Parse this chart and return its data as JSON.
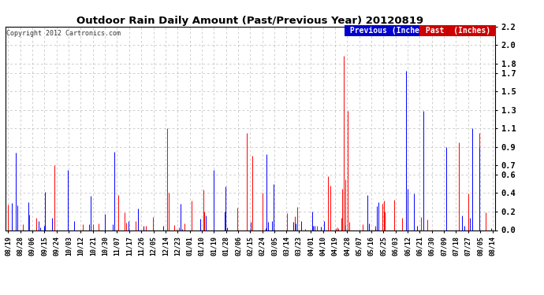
{
  "title": "Outdoor Rain Daily Amount (Past/Previous Year) 20120819",
  "copyright": "Copyright 2012 Cartronics.com",
  "legend_previous": "Previous (Inches)",
  "legend_past": "Past  (Inches)",
  "legend_previous_bg": "#0000cc",
  "legend_past_bg": "#cc0000",
  "yticks": [
    0.0,
    0.2,
    0.4,
    0.6,
    0.7,
    0.9,
    1.1,
    1.3,
    1.5,
    1.7,
    1.8,
    2.0,
    2.2
  ],
  "ylim": [
    0.0,
    2.2
  ],
  "background_color": "#ffffff",
  "grid_color": "#bbbbbb",
  "line_color_previous": "#0000ff",
  "line_color_past": "#ff0000",
  "line_color_black": "#000000",
  "x_labels": [
    "08/19",
    "08/28",
    "09/06",
    "09/15",
    "09/24",
    "10/03",
    "10/12",
    "10/21",
    "10/30",
    "11/07",
    "11/17",
    "11/26",
    "12/05",
    "12/14",
    "12/23",
    "01/01",
    "01/10",
    "01/19",
    "01/28",
    "02/06",
    "02/15",
    "02/24",
    "03/05",
    "03/14",
    "03/23",
    "04/01",
    "04/10",
    "04/19",
    "04/28",
    "05/07",
    "05/16",
    "05/25",
    "06/03",
    "06/12",
    "06/21",
    "06/30",
    "07/09",
    "07/18",
    "07/27",
    "08/05",
    "08/14"
  ],
  "n_points": 366
}
